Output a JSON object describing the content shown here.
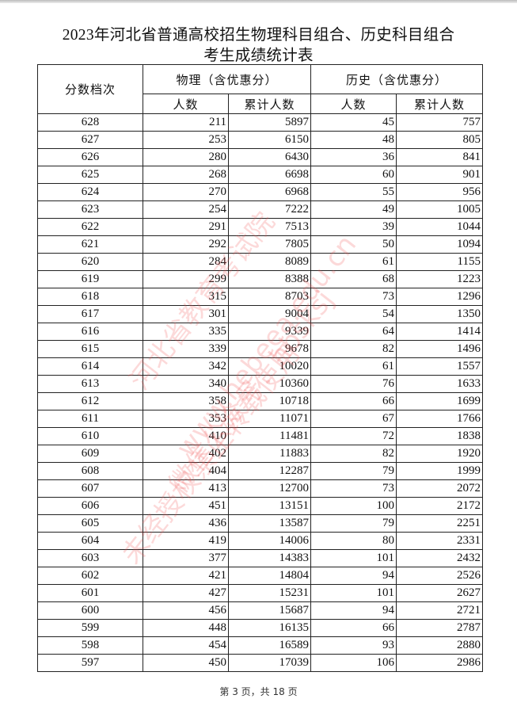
{
  "title_line1": "2023年河北省普通高校招生物理科目组合、历史科目组合",
  "title_line2": "考生成绩统计表",
  "headers": {
    "score": "分数档次",
    "physics": "物理（含优惠分）",
    "history": "历史（含优惠分）",
    "count": "人数",
    "cumulative": "累计人数"
  },
  "rows": [
    [
      628,
      211,
      5897,
      45,
      757
    ],
    [
      627,
      253,
      6150,
      48,
      805
    ],
    [
      626,
      280,
      6430,
      36,
      841
    ],
    [
      625,
      268,
      6698,
      60,
      901
    ],
    [
      624,
      270,
      6968,
      55,
      956
    ],
    [
      623,
      254,
      7222,
      49,
      1005
    ],
    [
      622,
      291,
      7513,
      39,
      1044
    ],
    [
      621,
      292,
      7805,
      50,
      1094
    ],
    [
      620,
      284,
      8089,
      61,
      1155
    ],
    [
      619,
      299,
      8388,
      68,
      1223
    ],
    [
      618,
      315,
      8703,
      73,
      1296
    ],
    [
      617,
      301,
      9004,
      54,
      1350
    ],
    [
      616,
      335,
      9339,
      64,
      1414
    ],
    [
      615,
      339,
      9678,
      82,
      1496
    ],
    [
      614,
      342,
      10020,
      61,
      1557
    ],
    [
      613,
      340,
      10360,
      76,
      1633
    ],
    [
      612,
      358,
      10718,
      66,
      1699
    ],
    [
      611,
      353,
      11071,
      67,
      1766
    ],
    [
      610,
      410,
      11481,
      72,
      1838
    ],
    [
      609,
      402,
      11883,
      82,
      1920
    ],
    [
      608,
      404,
      12287,
      79,
      1999
    ],
    [
      607,
      413,
      12700,
      73,
      2072
    ],
    [
      606,
      451,
      13151,
      100,
      2172
    ],
    [
      605,
      436,
      13587,
      79,
      2251
    ],
    [
      604,
      419,
      14006,
      80,
      2331
    ],
    [
      603,
      377,
      14383,
      101,
      2432
    ],
    [
      602,
      421,
      14804,
      94,
      2526
    ],
    [
      601,
      427,
      15231,
      101,
      2627
    ],
    [
      600,
      456,
      15687,
      94,
      2721
    ],
    [
      599,
      448,
      16135,
      66,
      2787
    ],
    [
      598,
      454,
      16589,
      93,
      2880
    ],
    [
      597,
      450,
      17039,
      106,
      2986
    ]
  ],
  "footer": "第 3 页，共 18 页",
  "watermark": [
    "河北省教育考试院",
    "www.hebeea.edu.cn",
    "微信公众号：hbsksj",
    "未经授权禁止转载使用"
  ],
  "watermark_color": "#f05050"
}
